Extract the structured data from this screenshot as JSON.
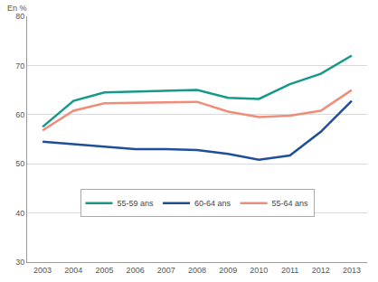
{
  "chart_data": {
    "type": "line",
    "ylabel": "En %",
    "categories": [
      "2003",
      "2004",
      "2005",
      "2006",
      "2007",
      "2008",
      "2009",
      "2010",
      "2011",
      "2012",
      "2013"
    ],
    "series": [
      {
        "name": "55-59 ans",
        "color": "#17998a",
        "values": [
          57.5,
          62.8,
          64.5,
          64.7,
          64.8,
          65.0,
          63.4,
          63.2,
          66.2,
          68.3,
          72.0
        ]
      },
      {
        "name": "60-64 ans",
        "color": "#1f4f99",
        "values": [
          54.5,
          54.0,
          53.5,
          53.0,
          53.0,
          52.8,
          52.0,
          50.8,
          51.7,
          56.5,
          62.8
        ]
      },
      {
        "name": "55-64 ans",
        "color": "#f08c7a",
        "values": [
          56.8,
          60.8,
          62.3,
          62.4,
          62.5,
          62.6,
          60.6,
          59.5,
          59.8,
          60.8,
          65.0
        ]
      }
    ],
    "ylim": [
      30,
      80
    ],
    "yticks": [
      30,
      40,
      50,
      60,
      70,
      80
    ],
    "grid": true,
    "legend": "bottom"
  }
}
